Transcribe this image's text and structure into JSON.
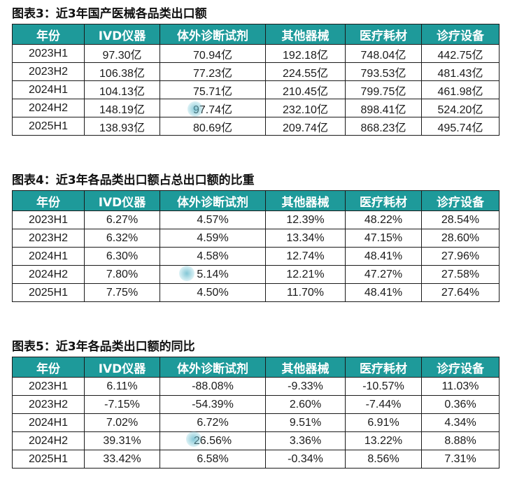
{
  "table3": {
    "title": "图表3：近3年国产医械各品类出口额",
    "headers": [
      "年份",
      "IVD仪器",
      "体外诊断试剂",
      "其他器械",
      "医疗耗材",
      "诊疗设备"
    ],
    "rows": [
      [
        "2023H1",
        "97.30亿",
        "70.94亿",
        "192.18亿",
        "748.04亿",
        "442.75亿"
      ],
      [
        "2023H2",
        "106.38亿",
        "77.23亿",
        "224.55亿",
        "793.53亿",
        "481.43亿"
      ],
      [
        "2024H1",
        "104.13亿",
        "75.71亿",
        "210.45亿",
        "799.75亿",
        "461.98亿"
      ],
      [
        "2024H2",
        "148.19亿",
        "97.74亿",
        "232.10亿",
        "898.41亿",
        "524.20亿"
      ],
      [
        "2025H1",
        "138.93亿",
        "80.69亿",
        "209.74亿",
        "868.23亿",
        "495.74亿"
      ]
    ]
  },
  "table4": {
    "title": "图表4：近3年各品类出口额占总出口额的比重",
    "headers": [
      "年份",
      "IVD仪器",
      "体外诊断试剂",
      "其他器械",
      "医疗耗材",
      "诊疗设备"
    ],
    "rows": [
      [
        "2023H1",
        "6.27%",
        "4.57%",
        "12.39%",
        "48.22%",
        "28.54%"
      ],
      [
        "2023H2",
        "6.32%",
        "4.59%",
        "13.34%",
        "47.15%",
        "28.60%"
      ],
      [
        "2024H1",
        "6.30%",
        "4.58%",
        "12.74%",
        "48.41%",
        "27.96%"
      ],
      [
        "2024H2",
        "7.80%",
        "5.14%",
        "12.21%",
        "47.27%",
        "27.58%"
      ],
      [
        "2025H1",
        "7.75%",
        "4.50%",
        "11.70%",
        "48.41%",
        "27.64%"
      ]
    ]
  },
  "table5": {
    "title": "图表5：近3年各品类出口额的同比",
    "headers": [
      "年份",
      "IVD仪器",
      "体外诊断试剂",
      "其他器械",
      "医疗耗材",
      "诊疗设备"
    ],
    "rows": [
      [
        "2023H1",
        "6.11%",
        "-88.08%",
        "-9.33%",
        "-10.57%",
        "11.03%"
      ],
      [
        "2023H2",
        "-7.15%",
        "-54.39%",
        "2.60%",
        "-7.44%",
        "0.36%"
      ],
      [
        "2024H1",
        "7.02%",
        "6.72%",
        "9.51%",
        "6.91%",
        "4.34%"
      ],
      [
        "2024H2",
        "39.31%",
        "26.56%",
        "3.36%",
        "13.22%",
        "8.88%"
      ],
      [
        "2025H1",
        "33.42%",
        "6.58%",
        "-0.34%",
        "8.56%",
        "7.31%"
      ]
    ]
  }
}
